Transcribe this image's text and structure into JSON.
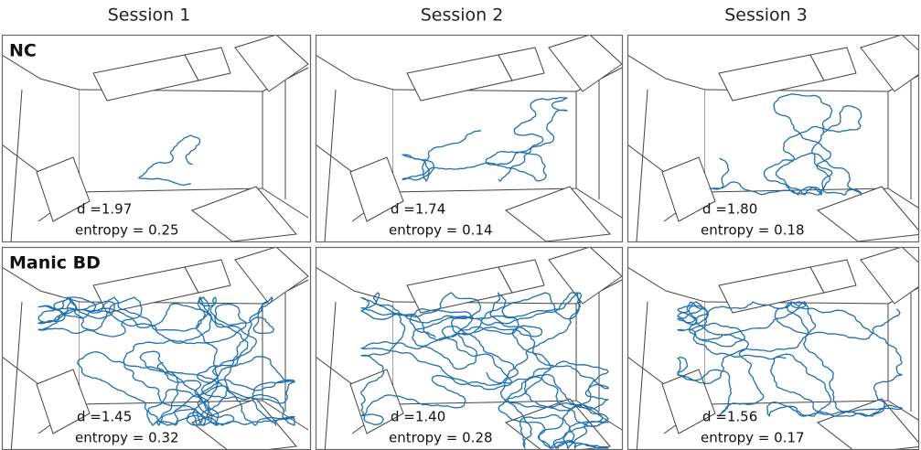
{
  "columns": [
    "Session 1",
    "Session 2",
    "Session 3"
  ],
  "rows": [
    {
      "label": "NC",
      "panels": [
        {
          "d": "d =1.97",
          "entropy": "entropy = 0.25"
        },
        {
          "d": "d =1.74",
          "entropy": "entropy = 0.14"
        },
        {
          "d": "d =1.80",
          "entropy": "entropy = 0.18"
        }
      ]
    },
    {
      "label": "Manic BD",
      "panels": [
        {
          "d": "d =1.45",
          "entropy": "entropy = 0.32"
        },
        {
          "d": "d =1.40",
          "entropy": "entropy = 0.28"
        },
        {
          "d": "d =1.56",
          "entropy": "entropy = 0.17"
        }
      ]
    }
  ]
}
